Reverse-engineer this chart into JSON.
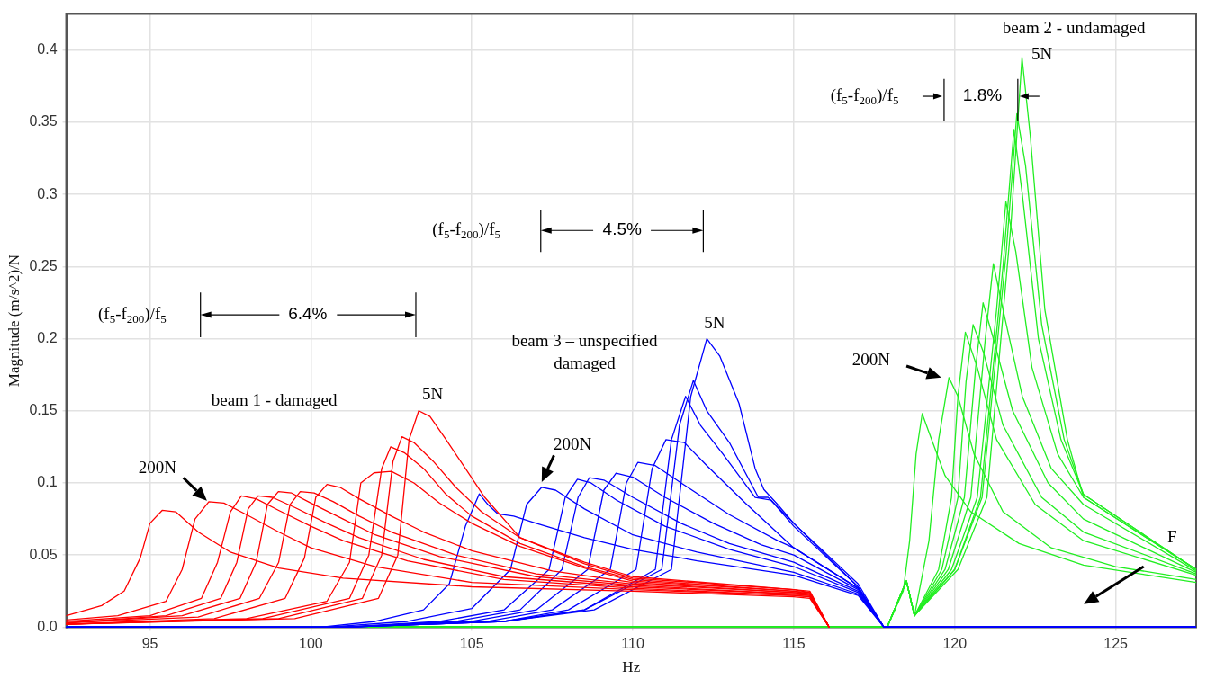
{
  "chart_data": {
    "type": "line",
    "xlabel": "Hz",
    "ylabel": "Magnitude (m/s^2)/N",
    "xlim": [
      92.4,
      127.5
    ],
    "ylim": [
      0,
      0.425
    ],
    "xticks": [
      95,
      100,
      105,
      110,
      115,
      120,
      125
    ],
    "yticks": [
      {
        "value": 0,
        "label": "0.0"
      },
      0.05,
      0.1,
      0.15,
      0.2,
      0.25,
      0.3,
      0.35,
      0.4
    ],
    "grid": true,
    "series": [
      {
        "color": "#ff0000",
        "x": [
          92.4,
          93.5,
          94.2,
          94.7,
          95.0,
          95.38,
          95.8,
          96.5,
          97.5,
          99,
          101,
          105,
          110,
          115,
          115.5,
          116.1
        ],
        "values": [
          0.008,
          0.015,
          0.025,
          0.048,
          0.072,
          0.081,
          0.08,
          0.066,
          0.052,
          0.041,
          0.034,
          0.028,
          0.025,
          0.021,
          0.02,
          0
        ]
      },
      {
        "color": "#ff0000",
        "x": [
          92.4,
          94,
          95.5,
          96.0,
          96.4,
          96.83,
          97.3,
          98,
          99,
          100,
          102,
          105,
          110,
          115,
          115.5,
          116.1
        ],
        "values": [
          0.005,
          0.008,
          0.018,
          0.04,
          0.075,
          0.087,
          0.086,
          0.078,
          0.066,
          0.055,
          0.042,
          0.031,
          0.026,
          0.022,
          0.021,
          0
        ]
      },
      {
        "color": "#ff0000",
        "x": [
          92.4,
          95,
          96.6,
          97.1,
          97.5,
          97.84,
          98.3,
          99,
          100,
          101,
          103,
          106,
          110,
          115,
          115.5,
          116.1
        ],
        "values": [
          0.004,
          0.008,
          0.02,
          0.045,
          0.08,
          0.091,
          0.089,
          0.081,
          0.07,
          0.06,
          0.046,
          0.033,
          0.027,
          0.022,
          0.021,
          0
        ]
      },
      {
        "color": "#ff0000",
        "x": [
          92.4,
          95.5,
          97.2,
          97.7,
          98.05,
          98.36,
          98.8,
          99.5,
          100.5,
          101.5,
          103.5,
          106,
          110,
          115,
          115.5,
          116.1
        ],
        "values": [
          0.003,
          0.008,
          0.02,
          0.045,
          0.082,
          0.091,
          0.09,
          0.083,
          0.072,
          0.062,
          0.047,
          0.035,
          0.028,
          0.023,
          0.022,
          0
        ]
      },
      {
        "color": "#ff0000",
        "x": [
          92.4,
          96,
          97.8,
          98.3,
          98.65,
          98.99,
          99.4,
          100,
          101,
          102,
          104,
          107,
          110,
          115,
          115.5,
          116.1
        ],
        "values": [
          0.003,
          0.008,
          0.02,
          0.045,
          0.085,
          0.094,
          0.093,
          0.086,
          0.075,
          0.064,
          0.049,
          0.035,
          0.029,
          0.023,
          0.022,
          0
        ]
      },
      {
        "color": "#ff0000",
        "x": [
          92.4,
          96.5,
          98.4,
          99.0,
          99.35,
          99.67,
          100.1,
          100.7,
          101.5,
          102.5,
          104.5,
          107,
          110,
          115,
          115.5,
          116.1
        ],
        "values": [
          0.003,
          0.007,
          0.02,
          0.045,
          0.085,
          0.094,
          0.093,
          0.087,
          0.077,
          0.066,
          0.05,
          0.037,
          0.03,
          0.024,
          0.023,
          0
        ]
      },
      {
        "color": "#ff0000",
        "x": [
          92.4,
          97,
          99.2,
          99.8,
          100.15,
          100.5,
          100.9,
          101.5,
          102.5,
          103.5,
          105,
          107.5,
          110,
          115,
          115.5,
          116.1
        ],
        "values": [
          0.002,
          0.006,
          0.02,
          0.048,
          0.09,
          0.099,
          0.097,
          0.089,
          0.077,
          0.066,
          0.053,
          0.039,
          0.031,
          0.024,
          0.023,
          0
        ]
      },
      {
        "color": "#ff0000",
        "x": [
          92.4,
          98,
          100.5,
          101.2,
          101.55,
          101.96,
          102.5,
          103.2,
          104,
          105,
          106.5,
          108.5,
          110,
          115,
          115.5,
          116.1
        ],
        "values": [
          0.002,
          0.006,
          0.018,
          0.045,
          0.1,
          0.107,
          0.108,
          0.1,
          0.086,
          0.072,
          0.056,
          0.041,
          0.032,
          0.025,
          0.023,
          0
        ]
      },
      {
        "color": "#ff0000",
        "x": [
          92.4,
          98.5,
          101.2,
          101.8,
          102.2,
          102.48,
          102.9,
          103.5,
          104.2,
          105,
          106.5,
          108.5,
          110,
          115,
          115.5,
          116.1
        ],
        "values": [
          0.002,
          0.006,
          0.02,
          0.05,
          0.11,
          0.125,
          0.121,
          0.11,
          0.092,
          0.077,
          0.058,
          0.042,
          0.033,
          0.025,
          0.024,
          0
        ]
      },
      {
        "color": "#ff0000",
        "x": [
          92.4,
          99,
          101.6,
          102.2,
          102.55,
          102.83,
          103.2,
          103.8,
          104.5,
          105.3,
          106.5,
          108.5,
          110,
          115,
          115.5,
          116.1
        ],
        "values": [
          0.002,
          0.006,
          0.02,
          0.05,
          0.115,
          0.132,
          0.128,
          0.115,
          0.097,
          0.08,
          0.062,
          0.044,
          0.034,
          0.026,
          0.024,
          0
        ]
      },
      {
        "color": "#ff0000",
        "x": [
          92.4,
          99.5,
          102.1,
          102.7,
          103.05,
          103.35,
          103.7,
          104.2,
          104.8,
          105.4,
          106.5,
          108.5,
          110,
          115,
          115.5,
          116.1
        ],
        "values": [
          0.002,
          0.006,
          0.02,
          0.05,
          0.13,
          0.15,
          0.146,
          0.13,
          0.11,
          0.09,
          0.062,
          0.045,
          0.035,
          0.026,
          0.025,
          0
        ]
      },
      {
        "color": "#0000ff",
        "x": [
          92.4,
          100.3,
          102,
          103.5,
          104.3,
          104.8,
          105.23,
          105.5,
          105.81,
          106.3,
          107,
          108.5,
          110,
          112,
          115,
          117,
          117.8,
          127.5
        ],
        "values": [
          0,
          0,
          0.004,
          0.012,
          0.03,
          0.07,
          0.0924,
          0.085,
          0.0785,
          0.077,
          0.072,
          0.062,
          0.054,
          0.046,
          0.036,
          0.022,
          0,
          0
        ]
      },
      {
        "color": "#0000ff",
        "x": [
          92.4,
          100.5,
          103,
          105,
          106.2,
          106.7,
          107.17,
          107.6,
          108.5,
          110,
          112,
          115,
          117,
          117.8,
          127.5
        ],
        "values": [
          0,
          0,
          0.004,
          0.013,
          0.04,
          0.085,
          0.097,
          0.095,
          0.082,
          0.064,
          0.052,
          0.038,
          0.023,
          0,
          0
        ]
      },
      {
        "color": "#0000ff",
        "x": [
          92.4,
          101,
          104,
          106,
          107.4,
          107.9,
          108.28,
          108.7,
          109.5,
          111,
          113,
          115,
          117,
          117.8,
          127.5
        ],
        "values": [
          0,
          0,
          0.004,
          0.012,
          0.04,
          0.09,
          0.1026,
          0.1,
          0.088,
          0.07,
          0.054,
          0.042,
          0.024,
          0,
          0
        ]
      },
      {
        "color": "#0000ff",
        "x": [
          92.4,
          101,
          104.5,
          106.5,
          107.8,
          108.3,
          108.65,
          109.1,
          110,
          111.5,
          113,
          115,
          117,
          117.8,
          127.5
        ],
        "values": [
          0,
          0,
          0.004,
          0.012,
          0.04,
          0.09,
          0.1036,
          0.102,
          0.09,
          0.072,
          0.058,
          0.045,
          0.025,
          0,
          0
        ]
      },
      {
        "color": "#0000ff",
        "x": [
          92.4,
          101,
          105,
          107,
          108.6,
          109.1,
          109.48,
          110,
          111,
          112.5,
          114,
          115,
          117,
          117.8,
          127.5
        ],
        "values": [
          0,
          0,
          0.004,
          0.012,
          0.04,
          0.095,
          0.1067,
          0.104,
          0.09,
          0.072,
          0.057,
          0.05,
          0.026,
          0,
          0
        ]
      },
      {
        "color": "#0000ff",
        "x": [
          92.4,
          101,
          105.5,
          107.5,
          109.3,
          109.8,
          110.16,
          110.7,
          111.5,
          113,
          114.5,
          115,
          117,
          117.8,
          127.5
        ],
        "values": [
          0,
          0,
          0.004,
          0.012,
          0.04,
          0.1,
          0.1143,
          0.112,
          0.1,
          0.078,
          0.06,
          0.055,
          0.027,
          0,
          0
        ]
      },
      {
        "color": "#0000ff",
        "x": [
          92.4,
          101,
          106,
          108,
          110.1,
          110.6,
          111.03,
          111.6,
          112.3,
          113.5,
          115,
          117,
          117.8,
          127.5
        ],
        "values": [
          0,
          0,
          0.004,
          0.012,
          0.04,
          0.11,
          0.13,
          0.128,
          0.112,
          0.086,
          0.055,
          0.027,
          0,
          0
        ]
      },
      {
        "color": "#0000ff",
        "x": [
          92.4,
          101,
          106,
          108.5,
          110.7,
          111.2,
          111.64,
          112.1,
          112.8,
          113.8,
          114.3,
          115,
          117,
          117.8,
          127.5
        ],
        "values": [
          0,
          0,
          0.004,
          0.012,
          0.04,
          0.13,
          0.16,
          0.14,
          0.12,
          0.09,
          0.088,
          0.07,
          0.028,
          0,
          0
        ]
      },
      {
        "color": "#0000ff",
        "x": [
          92.4,
          101,
          106,
          108.5,
          110.9,
          111.45,
          111.88,
          112.3,
          113,
          113.9,
          114.2,
          115,
          117,
          117.8,
          127.5
        ],
        "values": [
          0,
          0,
          0.004,
          0.012,
          0.04,
          0.14,
          0.171,
          0.15,
          0.128,
          0.09,
          0.09,
          0.072,
          0.028,
          0,
          0
        ]
      },
      {
        "color": "#0000ff",
        "x": [
          92.4,
          101,
          106,
          108.8,
          111.2,
          111.8,
          112.3,
          112.7,
          113.3,
          113.8,
          114.07,
          114.5,
          115,
          117,
          117.8,
          127.5
        ],
        "values": [
          0,
          0,
          0.004,
          0.012,
          0.04,
          0.16,
          0.2,
          0.188,
          0.155,
          0.11,
          0.0955,
          0.085,
          0.072,
          0.03,
          0,
          0
        ]
      },
      {
        "color": "#22ee22",
        "x": [
          92.4,
          117.9,
          118.4,
          118.6,
          118.8,
          118.99,
          119.2,
          119.7,
          120.5,
          122,
          124,
          127.5
        ],
        "values": [
          0,
          0,
          0.025,
          0.06,
          0.12,
          0.148,
          0.135,
          0.105,
          0.08,
          0.058,
          0.043,
          0.031
        ]
      },
      {
        "color": "#22ee22",
        "x": [
          92.4,
          117.9,
          118.5,
          118.75,
          119.2,
          119.5,
          119.82,
          120.1,
          120.6,
          121.5,
          123,
          125,
          127.5
        ],
        "values": [
          0,
          0,
          0.032,
          0.008,
          0.06,
          0.13,
          0.173,
          0.16,
          0.12,
          0.08,
          0.055,
          0.042,
          0.033
        ]
      },
      {
        "color": "#22ee22",
        "x": [
          92.4,
          117.9,
          118.5,
          118.75,
          119.5,
          119.9,
          120.1,
          120.33,
          120.7,
          121.3,
          122.5,
          124,
          127.5
        ],
        "values": [
          0,
          0,
          0.032,
          0.008,
          0.04,
          0.09,
          0.16,
          0.2045,
          0.18,
          0.13,
          0.085,
          0.06,
          0.036
        ]
      },
      {
        "color": "#22ee22",
        "x": [
          92.4,
          117.9,
          118.5,
          118.75,
          119.6,
          120.1,
          120.35,
          120.57,
          120.9,
          121.5,
          122.7,
          124,
          127.5
        ],
        "values": [
          0,
          0,
          0.032,
          0.008,
          0.04,
          0.09,
          0.17,
          0.2097,
          0.19,
          0.14,
          0.09,
          0.066,
          0.037
        ]
      },
      {
        "color": "#22ee22",
        "x": [
          92.4,
          117.9,
          118.5,
          118.75,
          119.7,
          120.3,
          120.65,
          120.88,
          121.2,
          121.8,
          122.9,
          124,
          127.5
        ],
        "values": [
          0,
          0,
          0.032,
          0.008,
          0.04,
          0.09,
          0.18,
          0.2248,
          0.2,
          0.15,
          0.1,
          0.075,
          0.038
        ]
      },
      {
        "color": "#22ee22",
        "x": [
          92.4,
          117.9,
          118.5,
          118.75,
          119.8,
          120.5,
          120.95,
          121.2,
          121.5,
          122.1,
          123,
          124,
          127.5
        ],
        "values": [
          0,
          0,
          0.032,
          0.008,
          0.04,
          0.09,
          0.2,
          0.252,
          0.22,
          0.16,
          0.11,
          0.085,
          0.039
        ]
      },
      {
        "color": "#22ee22",
        "x": [
          92.4,
          117.9,
          118.5,
          118.75,
          119.9,
          120.7,
          121.3,
          121.59,
          121.9,
          122.4,
          123.2,
          124,
          127.5
        ],
        "values": [
          0,
          0,
          0.032,
          0.008,
          0.04,
          0.09,
          0.22,
          0.295,
          0.26,
          0.18,
          0.12,
          0.09,
          0.04
        ]
      },
      {
        "color": "#22ee22",
        "x": [
          92.4,
          117.9,
          118.5,
          118.75,
          120,
          120.8,
          121.5,
          121.84,
          122.1,
          122.6,
          123.3,
          124,
          127.5
        ],
        "values": [
          0,
          0,
          0.032,
          0.008,
          0.04,
          0.09,
          0.25,
          0.345,
          0.3,
          0.2,
          0.13,
          0.092,
          0.04
        ]
      },
      {
        "color": "#22ee22",
        "x": [
          92.4,
          117.9,
          118.5,
          118.75,
          120,
          120.85,
          121.6,
          121.93,
          122.2,
          122.7,
          123.4,
          124,
          127.5
        ],
        "values": [
          0,
          0,
          0.032,
          0.008,
          0.04,
          0.09,
          0.26,
          0.356,
          0.32,
          0.21,
          0.13,
          0.092,
          0.04
        ]
      },
      {
        "color": "#22ee22",
        "x": [
          92.4,
          117.9,
          118.5,
          118.75,
          120.1,
          121,
          121.75,
          122.09,
          122.35,
          122.8,
          123.5,
          124,
          127.5
        ],
        "values": [
          0,
          0,
          0.032,
          0.008,
          0.04,
          0.09,
          0.28,
          0.395,
          0.34,
          0.22,
          0.13,
          0.09,
          0.04
        ]
      }
    ],
    "annotations": [
      "beam 1 - damaged",
      "5N",
      "200N",
      "(f$_{5}$-f$_{200}$)/f$_{5}$",
      "6.4%",
      "beam 3 – unspecified damaged",
      "5N",
      "200N",
      "(f$_{5}$-f$_{200}$)/f$_{5}$",
      "4.5%",
      "beam 2 - undamaged",
      {
        "text": "5N",
        "x": 122.09,
        "y": 0.395
      },
      "(f$_{5}$-f$_{200}$)/f$_{5}$",
      "1.8%",
      "200N",
      "F"
    ]
  }
}
